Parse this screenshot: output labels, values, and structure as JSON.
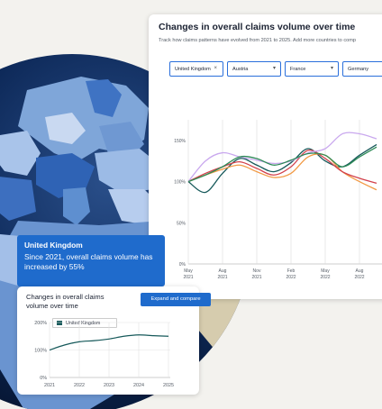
{
  "main_chart": {
    "title": "Changes in overall claims volume over time",
    "subtitle": "Track how claims patterns have evolved from 2021 to 2025. Add more countries to comp",
    "countries": [
      {
        "label": "United Kingdom",
        "control": "×"
      },
      {
        "label": "Austria",
        "control": "▾"
      },
      {
        "label": "France",
        "control": "▾"
      },
      {
        "label": "Germany",
        "control": ""
      }
    ],
    "colors": {
      "teal": "#16595a",
      "orange": "#f29a45",
      "red": "#d2414c",
      "purple": "#c9a8ee",
      "green": "#2e8b57"
    },
    "chart_data": {
      "type": "line",
      "y_ticks": [
        "150%",
        "100%",
        "50%",
        "0%"
      ],
      "x_ticks": [
        {
          "month": "May",
          "year": "2021"
        },
        {
          "month": "Aug",
          "year": "2021"
        },
        {
          "month": "Nov",
          "year": "2021"
        },
        {
          "month": "Feb",
          "year": "2022"
        },
        {
          "month": "May",
          "year": "2022"
        },
        {
          "month": "Aug",
          "year": "2022"
        }
      ],
      "ylim": [
        0,
        175
      ],
      "x": [
        0,
        0.5,
        1,
        1.5,
        2,
        2.5,
        3,
        3.5,
        4,
        4.5,
        5,
        5.5
      ],
      "series": [
        {
          "color": "teal",
          "values": [
            100,
            87,
            110,
            128,
            120,
            112,
            123,
            140,
            125,
            118,
            132,
            145
          ]
        },
        {
          "color": "orange",
          "values": [
            100,
            108,
            115,
            120,
            112,
            105,
            110,
            130,
            132,
            112,
            100,
            90
          ]
        },
        {
          "color": "red",
          "values": [
            100,
            110,
            118,
            124,
            116,
            108,
            118,
            138,
            128,
            112,
            104,
            98
          ]
        },
        {
          "color": "purple",
          "values": [
            100,
            125,
            135,
            130,
            126,
            122,
            125,
            135,
            140,
            158,
            158,
            152
          ]
        },
        {
          "color": "green",
          "values": [
            100,
            108,
            118,
            130,
            128,
            120,
            126,
            134,
            132,
            118,
            130,
            142
          ]
        }
      ]
    }
  },
  "tooltip": {
    "title": "United Kingdom",
    "body": "Since 2021, overall claims volume has increased by 55%"
  },
  "mini_chart": {
    "title": "Changes in overall claims volume over time",
    "button_label": "Expand and compare",
    "legend_label": "United Kingdom",
    "color": "#16595a",
    "chart_data": {
      "type": "line",
      "y_ticks": [
        "200%",
        "100%",
        "0%"
      ],
      "x_ticks": [
        "2021",
        "2022",
        "2023",
        "2024",
        "2025"
      ],
      "ylim": [
        0,
        200
      ],
      "x": [
        2021,
        2021.5,
        2022,
        2022.5,
        2023,
        2023.5,
        2024,
        2024.5,
        2025
      ],
      "series": [
        {
          "name": "United Kingdom",
          "values": [
            100,
            118,
            130,
            134,
            140,
            150,
            155,
            152,
            150
          ]
        }
      ]
    }
  }
}
